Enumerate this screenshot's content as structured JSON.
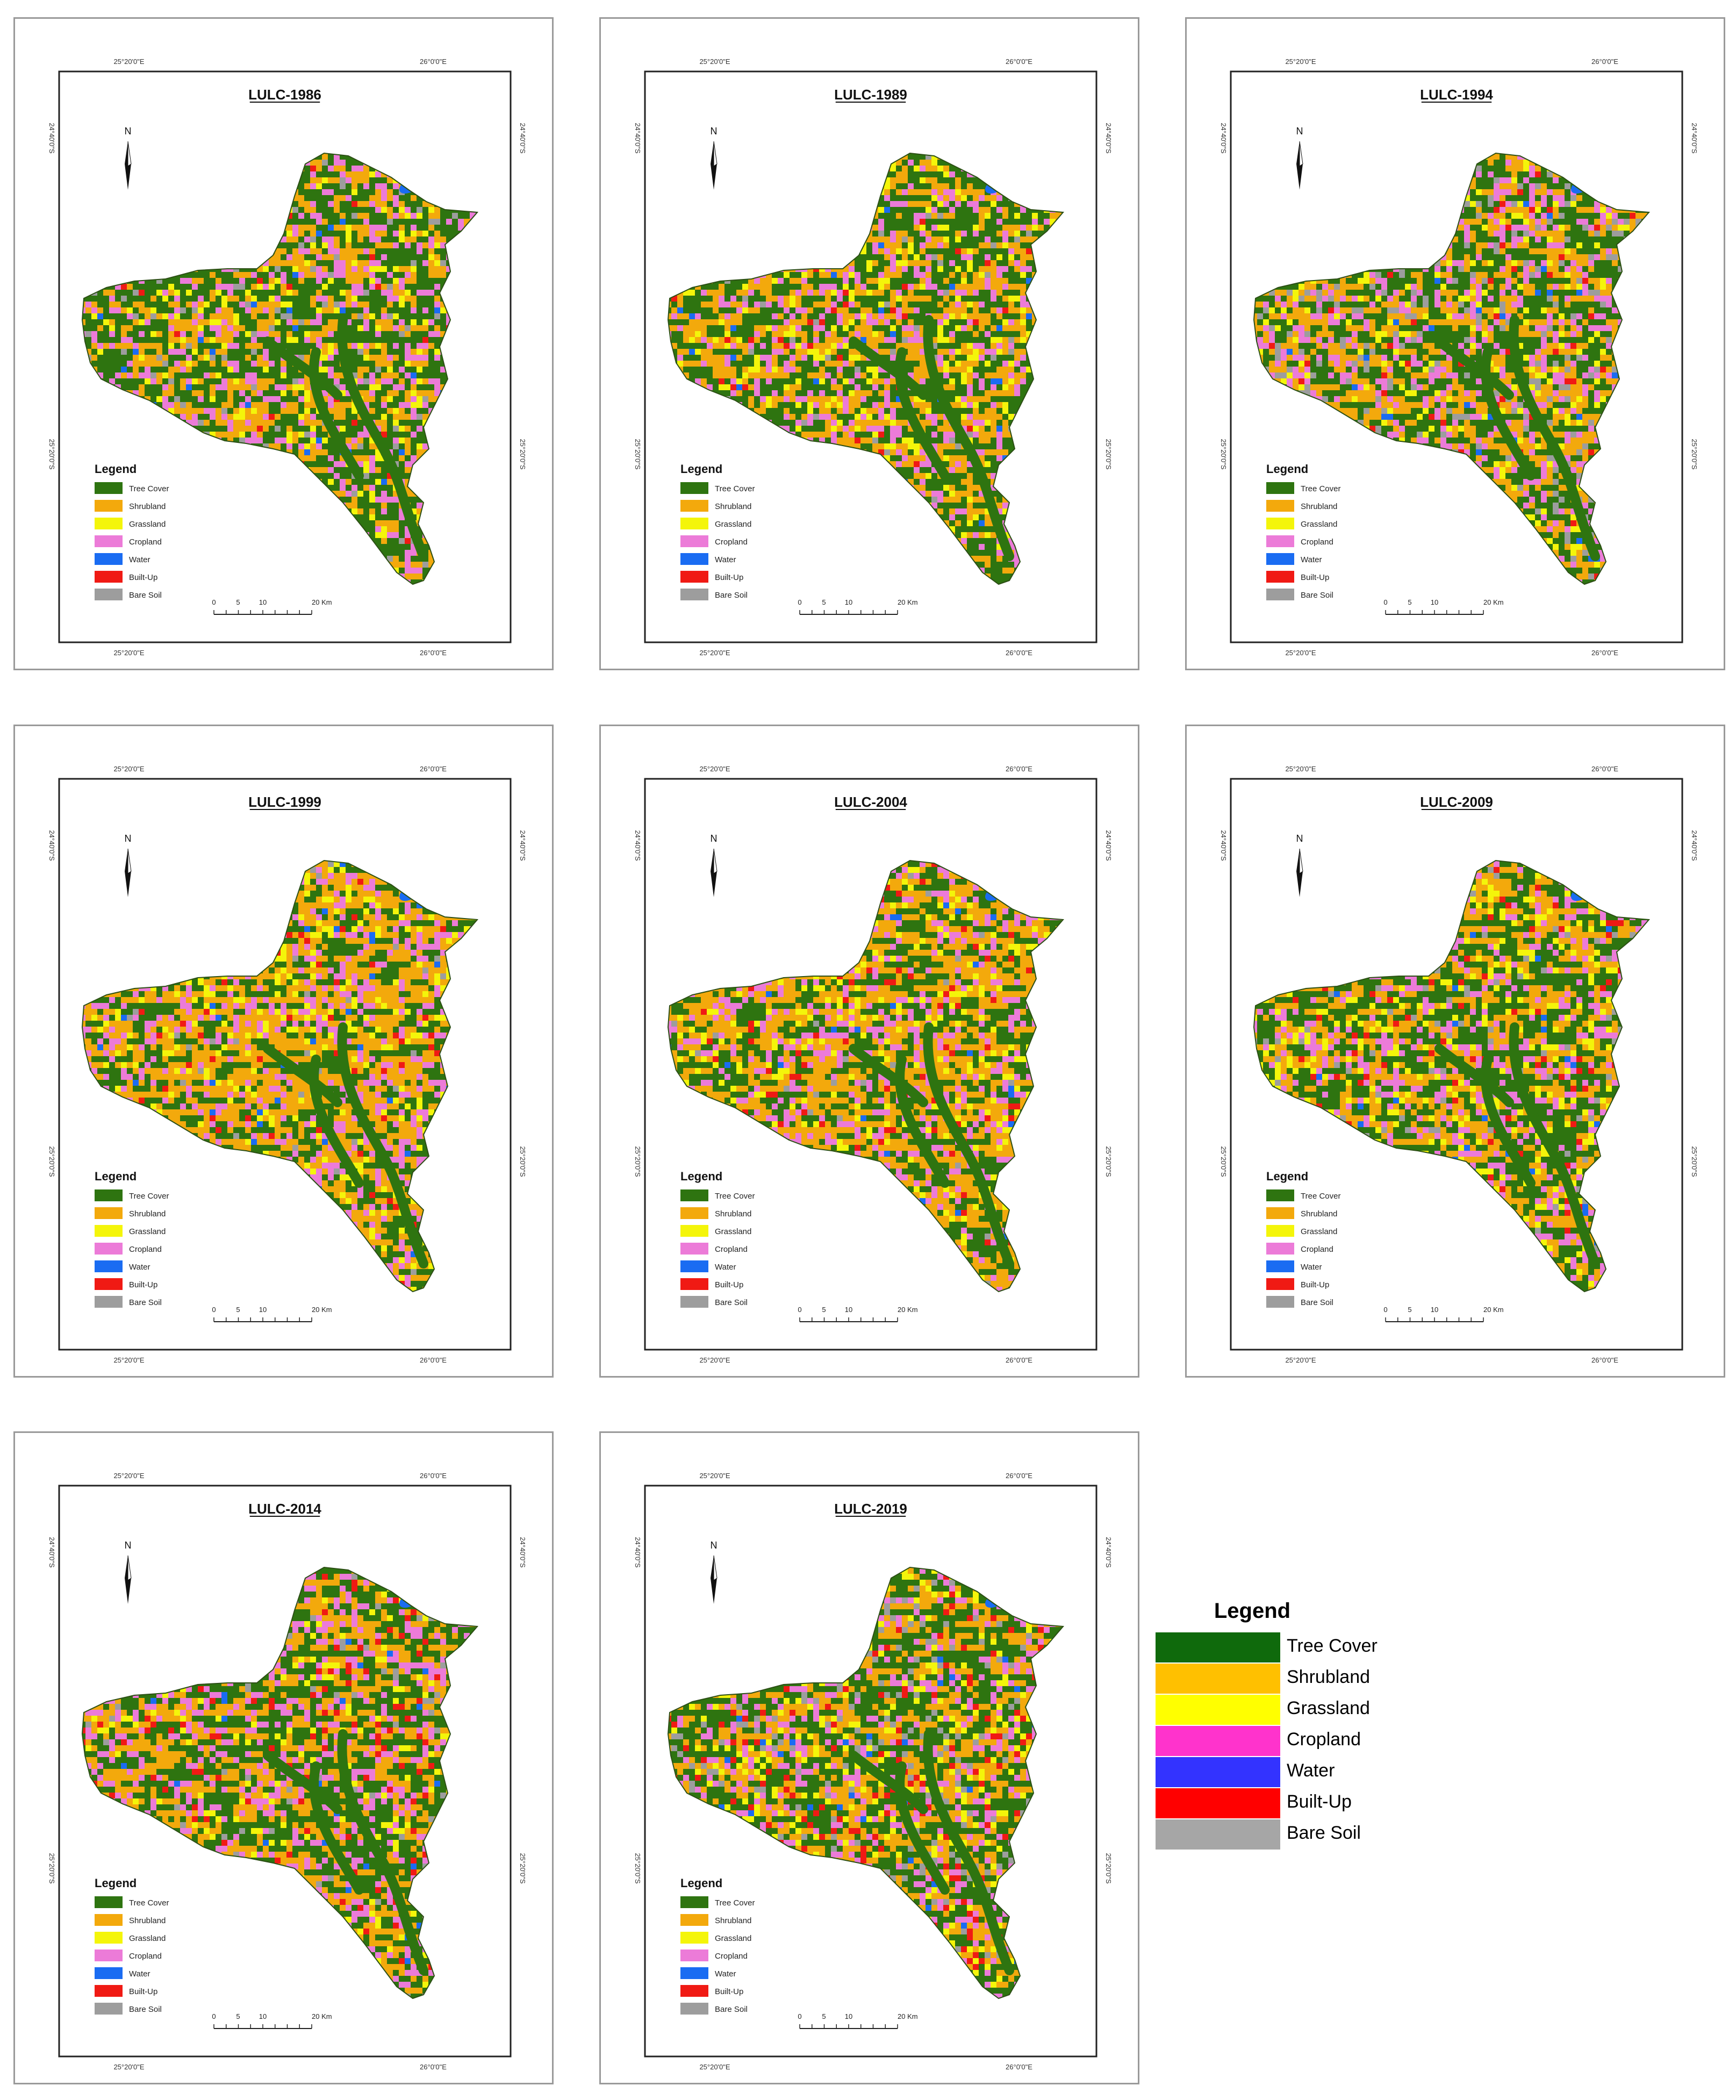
{
  "classes": [
    {
      "name": "Tree Cover",
      "color": "#2e7410"
    },
    {
      "name": "Shrubland",
      "color": "#f3a90c"
    },
    {
      "name": "Grassland",
      "color": "#f4f50a"
    },
    {
      "name": "Cropland",
      "color": "#ec7bd8"
    },
    {
      "name": "Water",
      "color": "#1a6cf2"
    },
    {
      "name": "Built-Up",
      "color": "#f01a14"
    },
    {
      "name": "Bare Soil",
      "color": "#9d9d9d"
    }
  ],
  "map_common": {
    "top_lon_left": "25°20'0\"E",
    "top_lon_right": "26°0'0\"E",
    "bottom_lon_left": "25°20'0\"E",
    "bottom_lon_right": "26°0'0\"E",
    "lat_top": "24°40'0\"S",
    "lat_bottom": "25°20'0\"S",
    "north_label": "N",
    "legend_title": "Legend",
    "scale_ticks": [
      "0",
      "5",
      "10",
      "20 Km"
    ]
  },
  "maps": [
    {
      "title": "LULC-1986",
      "mix": {
        "Tree Cover": 0.32,
        "Shrubland": 0.38,
        "Grassland": 0.08,
        "Cropland": 0.17,
        "Water": 0.01,
        "Built-Up": 0.005,
        "Bare Soil": 0.035
      }
    },
    {
      "title": "LULC-1989",
      "mix": {
        "Tree Cover": 0.28,
        "Shrubland": 0.43,
        "Grassland": 0.09,
        "Cropland": 0.16,
        "Water": 0.01,
        "Built-Up": 0.01,
        "Bare Soil": 0.02
      }
    },
    {
      "title": "LULC-1994",
      "mix": {
        "Tree Cover": 0.27,
        "Shrubland": 0.38,
        "Grassland": 0.07,
        "Cropland": 0.17,
        "Water": 0.01,
        "Built-Up": 0.02,
        "Bare Soil": 0.08
      }
    },
    {
      "title": "LULC-1999",
      "mix": {
        "Tree Cover": 0.2,
        "Shrubland": 0.5,
        "Grassland": 0.09,
        "Cropland": 0.17,
        "Water": 0.01,
        "Built-Up": 0.02,
        "Bare Soil": 0.01
      }
    },
    {
      "title": "LULC-2004",
      "mix": {
        "Tree Cover": 0.22,
        "Shrubland": 0.47,
        "Grassland": 0.09,
        "Cropland": 0.17,
        "Water": 0.01,
        "Built-Up": 0.03,
        "Bare Soil": 0.01
      }
    },
    {
      "title": "LULC-2009",
      "mix": {
        "Tree Cover": 0.3,
        "Shrubland": 0.38,
        "Grassland": 0.1,
        "Cropland": 0.15,
        "Water": 0.01,
        "Built-Up": 0.03,
        "Bare Soil": 0.03
      }
    },
    {
      "title": "LULC-2014",
      "mix": {
        "Tree Cover": 0.3,
        "Shrubland": 0.4,
        "Grassland": 0.05,
        "Cropland": 0.18,
        "Water": 0.01,
        "Built-Up": 0.04,
        "Bare Soil": 0.02
      }
    },
    {
      "title": "LULC-2019",
      "mix": {
        "Tree Cover": 0.3,
        "Shrubland": 0.35,
        "Grassland": 0.08,
        "Cropland": 0.14,
        "Water": 0.01,
        "Built-Up": 0.06,
        "Bare Soil": 0.06
      }
    }
  ],
  "page_legend": {
    "title": "Legend",
    "items": [
      {
        "name": "Tree Cover",
        "color": "#0f6a0c"
      },
      {
        "name": "Shrubland",
        "color": "#ffc000"
      },
      {
        "name": "Grassland",
        "color": "#ffff00"
      },
      {
        "name": "Cropland",
        "color": "#ff33cc"
      },
      {
        "name": "Water",
        "color": "#3333ff"
      },
      {
        "name": "Built-Up",
        "color": "#ff0000"
      },
      {
        "name": "Bare Soil",
        "color": "#a6a6a6"
      }
    ]
  }
}
